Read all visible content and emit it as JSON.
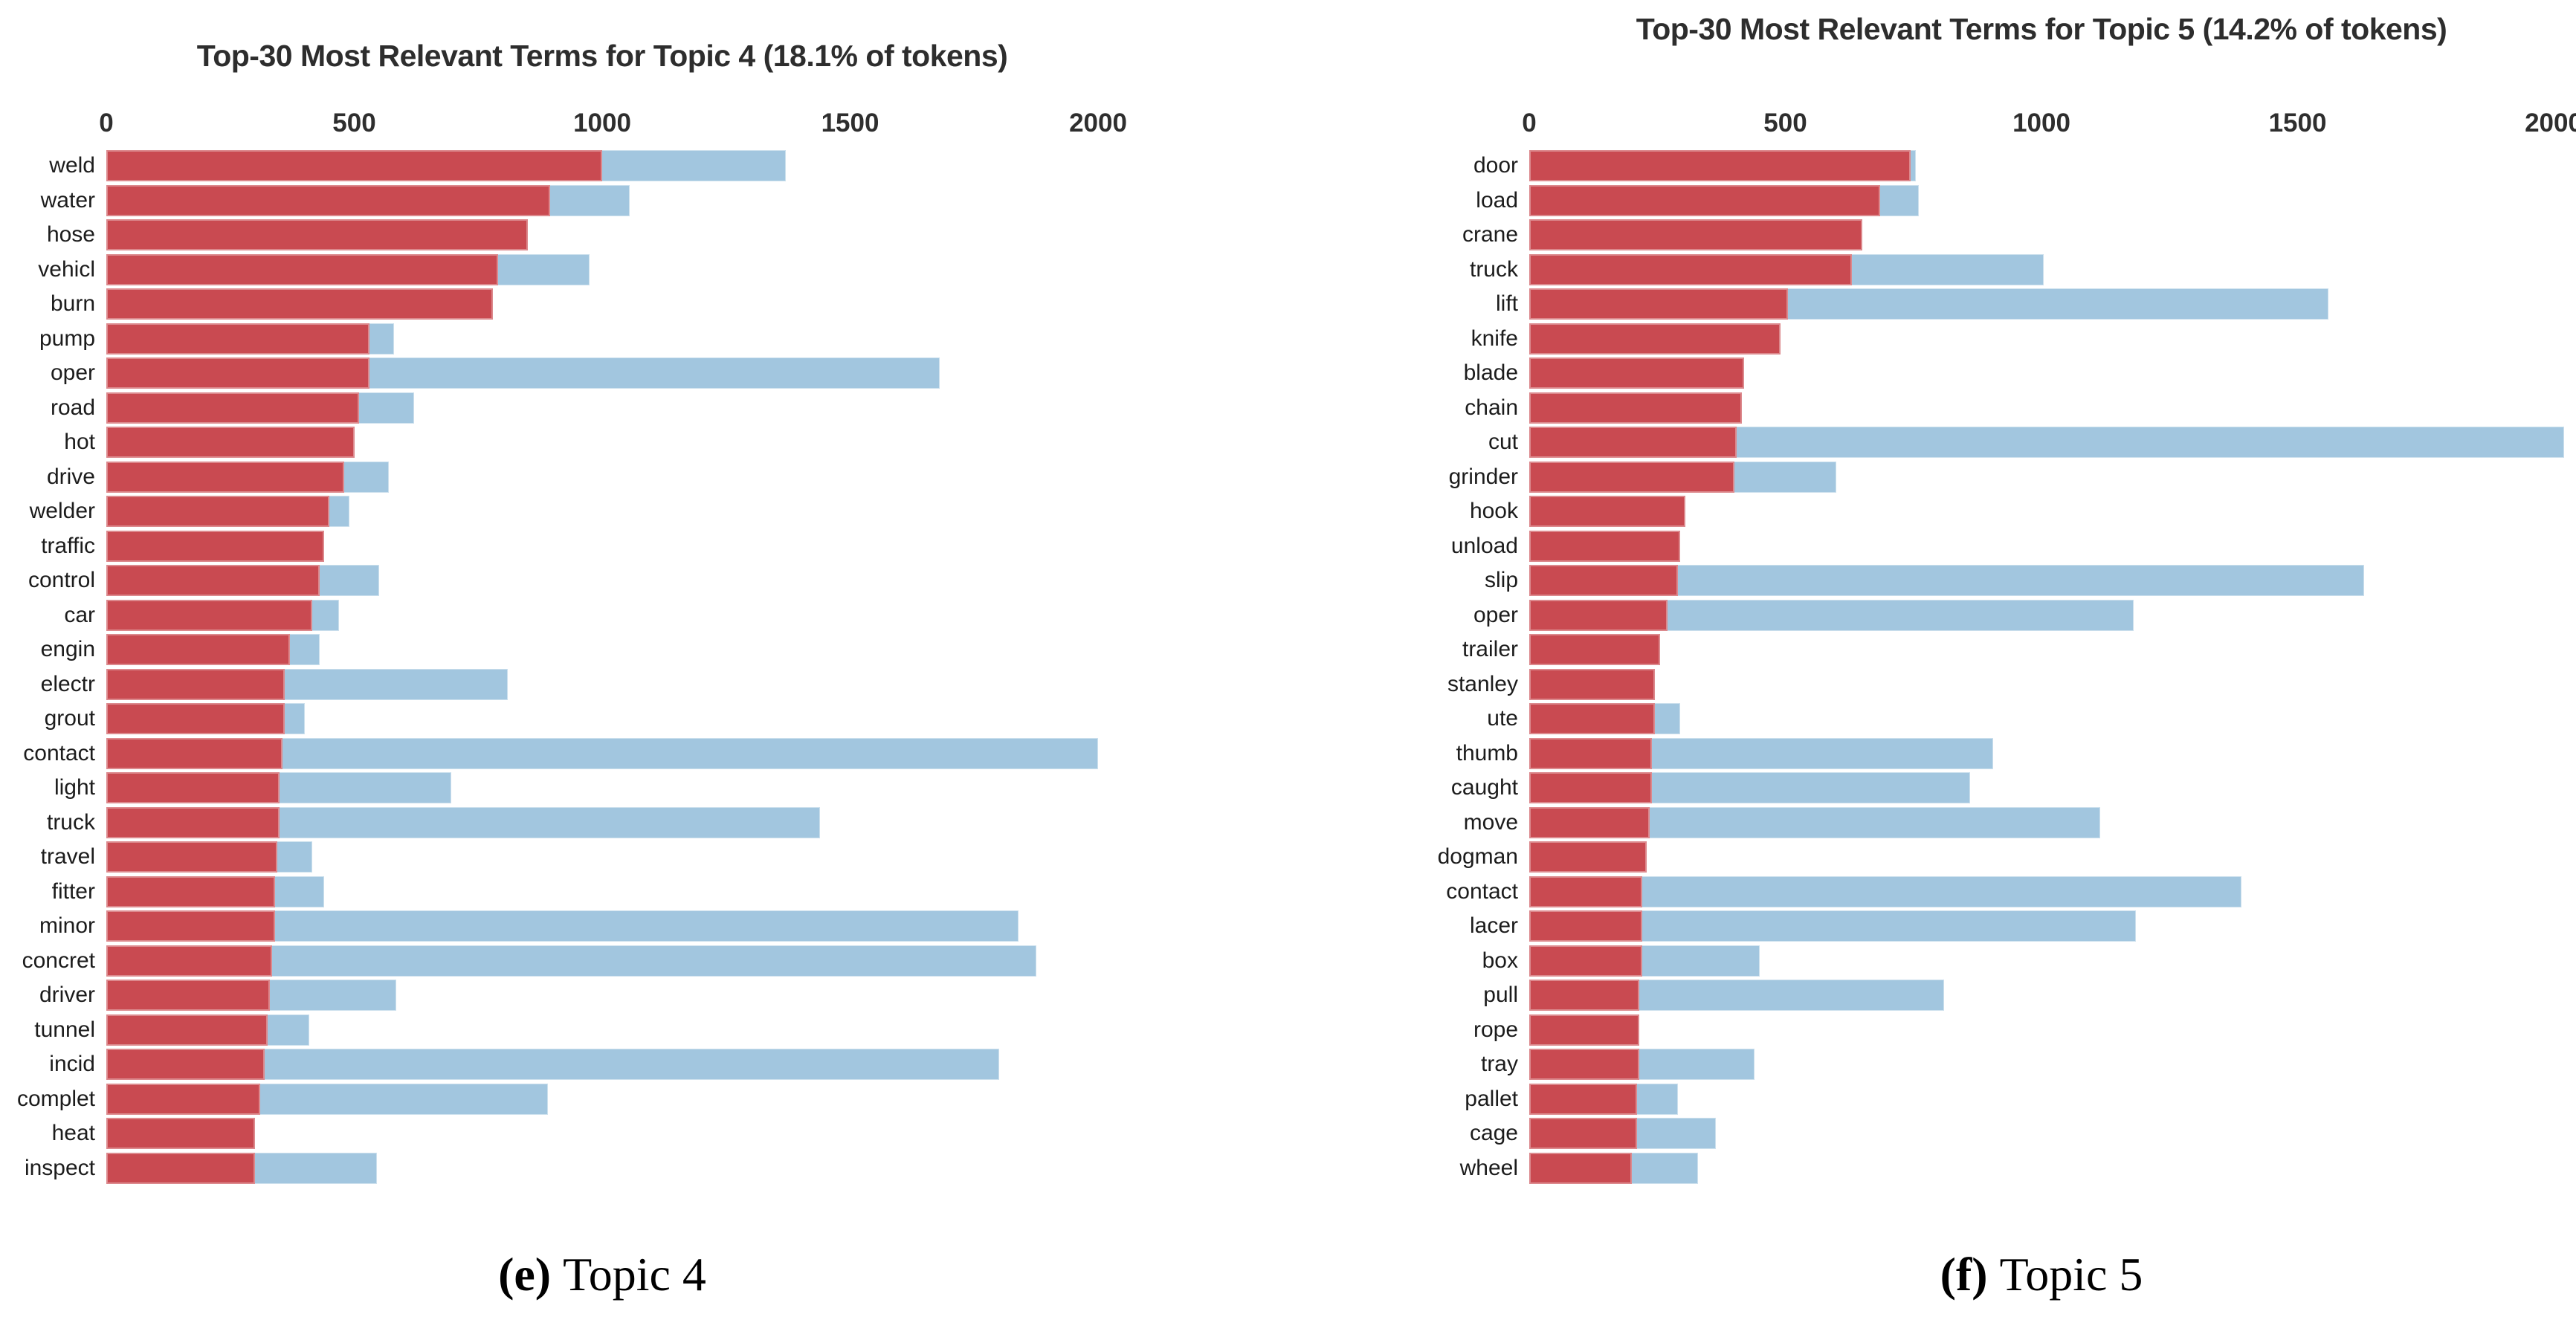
{
  "colors": {
    "topic_bar": "#c94a51",
    "overall_bar": "#a2c6df",
    "title_text": "#2d2d2d",
    "tick_text": "#2e2e2e",
    "label_text": "#1c1c1c"
  },
  "chart_data": [
    {
      "type": "bar",
      "orientation": "horizontal",
      "title": "Top-30 Most Relevant Terms for Topic 4 (18.1% of tokens)",
      "caption_letter": "(e)",
      "caption_title": "Topic 4",
      "xlabel": "",
      "ylabel": "",
      "xlim": [
        0,
        2000
      ],
      "x_ticks": [
        "0",
        "500",
        "1000",
        "1500",
        "2000"
      ],
      "grid": false,
      "legend": "none",
      "series_keys": [
        "topic",
        "overall"
      ],
      "terms": [
        {
          "term": "weld",
          "topic": 1000,
          "overall": 1370
        },
        {
          "term": "water",
          "topic": 895,
          "overall": 1055
        },
        {
          "term": "hose",
          "topic": 850,
          "overall": 850
        },
        {
          "term": "vehicl",
          "topic": 790,
          "overall": 975
        },
        {
          "term": "burn",
          "topic": 780,
          "overall": 780
        },
        {
          "term": "pump",
          "topic": 530,
          "overall": 580
        },
        {
          "term": "oper",
          "topic": 530,
          "overall": 1680
        },
        {
          "term": "road",
          "topic": 510,
          "overall": 620
        },
        {
          "term": "hot",
          "topic": 500,
          "overall": 500
        },
        {
          "term": "drive",
          "topic": 480,
          "overall": 570
        },
        {
          "term": "welder",
          "topic": 450,
          "overall": 490
        },
        {
          "term": "traffic",
          "topic": 440,
          "overall": 440
        },
        {
          "term": "control",
          "topic": 430,
          "overall": 550
        },
        {
          "term": "car",
          "topic": 415,
          "overall": 470
        },
        {
          "term": "engin",
          "topic": 370,
          "overall": 430
        },
        {
          "term": "electr",
          "topic": 360,
          "overall": 810
        },
        {
          "term": "grout",
          "topic": 360,
          "overall": 400
        },
        {
          "term": "contact",
          "topic": 355,
          "overall": 2000
        },
        {
          "term": "light",
          "topic": 350,
          "overall": 695
        },
        {
          "term": "truck",
          "topic": 350,
          "overall": 1440
        },
        {
          "term": "travel",
          "topic": 345,
          "overall": 415
        },
        {
          "term": "fitter",
          "topic": 340,
          "overall": 440
        },
        {
          "term": "minor",
          "topic": 340,
          "overall": 1840
        },
        {
          "term": "concret",
          "topic": 335,
          "overall": 1875
        },
        {
          "term": "driver",
          "topic": 330,
          "overall": 585
        },
        {
          "term": "tunnel",
          "topic": 325,
          "overall": 410
        },
        {
          "term": "incid",
          "topic": 320,
          "overall": 1800
        },
        {
          "term": "complet",
          "topic": 310,
          "overall": 890
        },
        {
          "term": "heat",
          "topic": 300,
          "overall": 300
        },
        {
          "term": "inspect",
          "topic": 300,
          "overall": 545
        }
      ]
    },
    {
      "type": "bar",
      "orientation": "horizontal",
      "title": "Top-30 Most Relevant Terms for Topic 5 (14.2% of tokens)",
      "caption_letter": "(f)",
      "caption_title": "Topic 5",
      "xlabel": "",
      "ylabel": "",
      "xlim": [
        0,
        2000
      ],
      "x_ticks": [
        "0",
        "500",
        "1000",
        "1500",
        "2000"
      ],
      "grid": false,
      "legend": "none",
      "series_keys": [
        "topic",
        "overall"
      ],
      "terms": [
        {
          "term": "door",
          "topic": 745,
          "overall": 755
        },
        {
          "term": "load",
          "topic": 685,
          "overall": 760
        },
        {
          "term": "crane",
          "topic": 650,
          "overall": 650
        },
        {
          "term": "truck",
          "topic": 630,
          "overall": 1005
        },
        {
          "term": "lift",
          "topic": 505,
          "overall": 1560
        },
        {
          "term": "knife",
          "topic": 490,
          "overall": 490
        },
        {
          "term": "blade",
          "topic": 420,
          "overall": 420
        },
        {
          "term": "chain",
          "topic": 415,
          "overall": 415
        },
        {
          "term": "cut",
          "topic": 405,
          "overall": 2020
        },
        {
          "term": "grinder",
          "topic": 400,
          "overall": 600
        },
        {
          "term": "hook",
          "topic": 305,
          "overall": 305
        },
        {
          "term": "unload",
          "topic": 295,
          "overall": 295
        },
        {
          "term": "slip",
          "topic": 290,
          "overall": 1630
        },
        {
          "term": "oper",
          "topic": 270,
          "overall": 1180
        },
        {
          "term": "trailer",
          "topic": 255,
          "overall": 255
        },
        {
          "term": "stanley",
          "topic": 245,
          "overall": 245
        },
        {
          "term": "ute",
          "topic": 245,
          "overall": 295
        },
        {
          "term": "thumb",
          "topic": 240,
          "overall": 905
        },
        {
          "term": "caught",
          "topic": 240,
          "overall": 860
        },
        {
          "term": "move",
          "topic": 235,
          "overall": 1115
        },
        {
          "term": "dogman",
          "topic": 230,
          "overall": 230
        },
        {
          "term": "contact",
          "topic": 220,
          "overall": 1390
        },
        {
          "term": "lacer",
          "topic": 220,
          "overall": 1185
        },
        {
          "term": "box",
          "topic": 220,
          "overall": 450
        },
        {
          "term": "pull",
          "topic": 215,
          "overall": 810
        },
        {
          "term": "rope",
          "topic": 215,
          "overall": 215
        },
        {
          "term": "tray",
          "topic": 215,
          "overall": 440
        },
        {
          "term": "pallet",
          "topic": 210,
          "overall": 290
        },
        {
          "term": "cage",
          "topic": 210,
          "overall": 365
        },
        {
          "term": "wheel",
          "topic": 200,
          "overall": 330
        }
      ]
    }
  ]
}
